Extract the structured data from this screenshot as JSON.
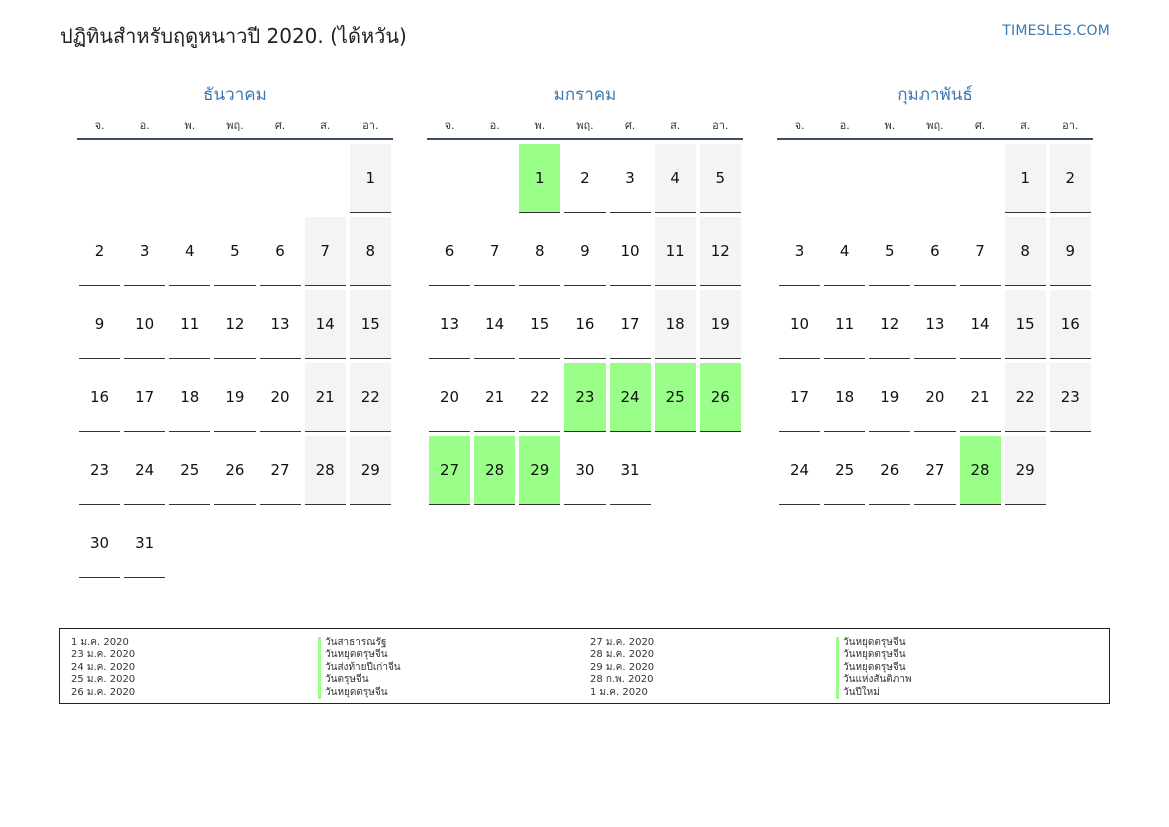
{
  "title": "ปฏิทินสำหรับฤดูหนาวปี 2020. (ได้หวัน)",
  "brand": "TIMESLES.COM",
  "weekdays": [
    "จ.",
    "อ.",
    "พ.",
    "พฤ.",
    "ศ.",
    "ส.",
    "อา."
  ],
  "colors": {
    "accent": "#3a78b5",
    "holiday": "#99ff88",
    "weekend": "#f4f4f4"
  },
  "months": [
    {
      "name": "ธันวาคม",
      "offset": 6,
      "days": 31,
      "holidays": []
    },
    {
      "name": "มกราคม",
      "offset": 2,
      "days": 31,
      "holidays": [
        1,
        23,
        24,
        25,
        26,
        27,
        28,
        29
      ]
    },
    {
      "name": "กุมภาพันธ์",
      "offset": 5,
      "days": 29,
      "holidays": [
        28
      ]
    }
  ],
  "legend": {
    "left": [
      {
        "date": "1 ม.ค. 2020",
        "name": "วันสาธารณรัฐ"
      },
      {
        "date": "23 ม.ค. 2020",
        "name": "วันหยุดตรุษจีน"
      },
      {
        "date": "24 ม.ค. 2020",
        "name": "วันส่งท้ายปีเก่าจีน"
      },
      {
        "date": "25 ม.ค. 2020",
        "name": "วันตรุษจีน"
      },
      {
        "date": "26 ม.ค. 2020",
        "name": "วันหยุดตรุษจีน"
      }
    ],
    "right": [
      {
        "date": "27 ม.ค. 2020",
        "name": "วันหยุดตรุษจีน"
      },
      {
        "date": "28 ม.ค. 2020",
        "name": "วันหยุดตรุษจีน"
      },
      {
        "date": "29 ม.ค. 2020",
        "name": "วันหยุดตรุษจีน"
      },
      {
        "date": "28 ก.พ. 2020",
        "name": "วันแห่งสันติภาพ"
      },
      {
        "date": "1 ม.ค. 2020",
        "name": "วันปีใหม่"
      }
    ]
  }
}
